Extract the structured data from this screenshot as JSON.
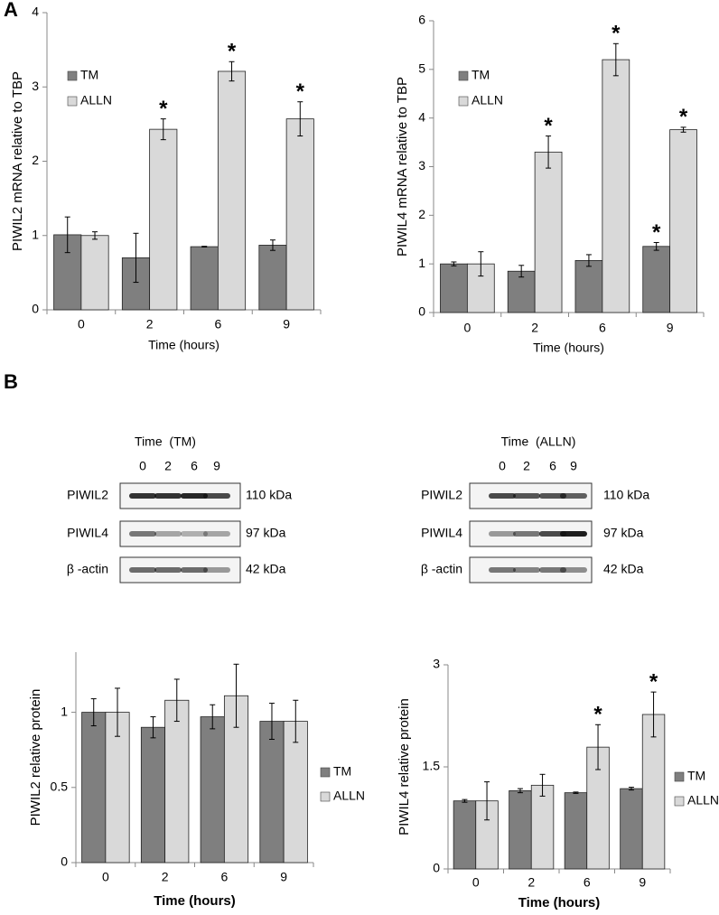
{
  "panels": [
    "A",
    "B"
  ],
  "chart_data": [
    {
      "type": "bar",
      "y_label": "PIWIL2 mRNA relative to TBP",
      "x_label": "Time (hours)",
      "categories": [
        "0",
        "2",
        "6",
        "9"
      ],
      "ylim": [
        0,
        4
      ],
      "yticks": [
        0,
        1,
        2,
        3,
        4
      ],
      "grid": false,
      "legend": "upper left",
      "series": [
        {
          "name": "TM",
          "color": "#7f7f7f",
          "values": [
            1.01,
            0.7,
            0.85,
            0.87
          ],
          "errors": [
            0.24,
            0.33,
            0.005,
            0.07
          ],
          "significance": [
            null,
            null,
            null,
            null
          ]
        },
        {
          "name": "ALLN",
          "color": "#d9d9d9",
          "values": [
            1.0,
            2.43,
            3.21,
            2.57
          ],
          "errors": [
            0.05,
            0.14,
            0.13,
            0.23
          ],
          "significance": [
            null,
            "*",
            "*",
            "*"
          ]
        }
      ]
    },
    {
      "type": "bar",
      "y_label": "PIWIL4 mRNA relative to TBP",
      "x_label": "Time (hours)",
      "categories": [
        "0",
        "2",
        "6",
        "9"
      ],
      "ylim": [
        0,
        6
      ],
      "yticks": [
        0,
        1,
        2,
        3,
        4,
        5,
        6
      ],
      "grid": false,
      "legend": "upper left",
      "series": [
        {
          "name": "TM",
          "color": "#7f7f7f",
          "values": [
            1.0,
            0.85,
            1.07,
            1.36
          ],
          "errors": [
            0.04,
            0.12,
            0.12,
            0.08
          ],
          "significance": [
            null,
            null,
            null,
            "*"
          ]
        },
        {
          "name": "ALLN",
          "color": "#d9d9d9",
          "values": [
            1.0,
            3.3,
            5.2,
            3.76
          ],
          "errors": [
            0.25,
            0.33,
            0.33,
            0.05
          ],
          "significance": [
            null,
            "*",
            "*",
            "*"
          ]
        }
      ]
    },
    {
      "type": "bar",
      "y_label": "PIWIL2 relative protein",
      "x_label": "Time (hours)",
      "categories": [
        "0",
        "2",
        "6",
        "9"
      ],
      "ylim": [
        0,
        1.4
      ],
      "yticks": [
        0,
        0.5,
        1
      ],
      "grid": false,
      "legend": "right",
      "series": [
        {
          "name": "TM",
          "color": "#7f7f7f",
          "values": [
            1.0,
            0.9,
            0.97,
            0.94
          ],
          "errors": [
            0.09,
            0.07,
            0.08,
            0.12
          ],
          "significance": [
            null,
            null,
            null,
            null
          ]
        },
        {
          "name": "ALLN",
          "color": "#d9d9d9",
          "values": [
            1.0,
            1.08,
            1.11,
            0.94
          ],
          "errors": [
            0.16,
            0.14,
            0.21,
            0.14
          ],
          "significance": [
            null,
            null,
            null,
            null
          ]
        }
      ]
    },
    {
      "type": "bar",
      "y_label": "PIWIL4 relative protein",
      "x_label": "Time (hours)",
      "categories": [
        "0",
        "2",
        "6",
        "9"
      ],
      "ylim": [
        0,
        3
      ],
      "yticks": [
        0,
        1.5,
        3
      ],
      "grid": false,
      "legend": "right",
      "series": [
        {
          "name": "TM",
          "color": "#7f7f7f",
          "values": [
            1.0,
            1.15,
            1.12,
            1.18
          ],
          "errors": [
            0.02,
            0.03,
            0.01,
            0.02
          ],
          "significance": [
            null,
            null,
            null,
            null
          ]
        },
        {
          "name": "ALLN",
          "color": "#d9d9d9",
          "values": [
            1.0,
            1.23,
            1.79,
            2.27
          ],
          "errors": [
            0.28,
            0.16,
            0.33,
            0.33
          ],
          "significance": [
            null,
            null,
            "*",
            "*"
          ]
        }
      ]
    }
  ],
  "blots": [
    {
      "title": "Time  (TM)",
      "lanes": [
        "0",
        "2",
        "6",
        "9"
      ],
      "rows": [
        {
          "name": "PIWIL2",
          "size": "110 kDa"
        },
        {
          "name": "PIWIL4",
          "size": "97 kDa"
        },
        {
          "name": "β -actin",
          "size": "42 kDa"
        }
      ]
    },
    {
      "title": "Time  (ALLN)",
      "lanes": [
        "0",
        "2",
        "6",
        "9"
      ],
      "rows": [
        {
          "name": "PIWIL2",
          "size": "110 kDa"
        },
        {
          "name": "PIWIL4",
          "size": "97 kDa"
        },
        {
          "name": "β -actin",
          "size": "42 kDa"
        }
      ]
    }
  ]
}
